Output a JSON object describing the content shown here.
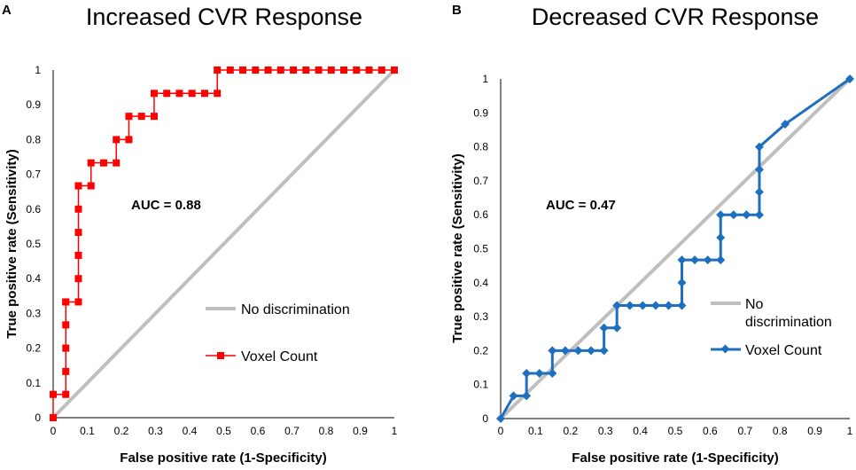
{
  "chart_data": [
    {
      "type": "line",
      "panel_label": "A",
      "title": "Increased CVR Response",
      "xlabel": "False positive rate (1-Specificity)",
      "ylabel": "True positive rate (Sensitivity)",
      "xlim": [
        0,
        1
      ],
      "ylim": [
        0,
        1
      ],
      "xticks": [
        "0",
        "0.1",
        "0.2",
        "0.3",
        "0.4",
        "0.5",
        "0.6",
        "0.7",
        "0.8",
        "0.9",
        "1"
      ],
      "yticks": [
        "0",
        "0.1",
        "0.2",
        "0.3",
        "0.4",
        "0.5",
        "0.6",
        "0.7",
        "0.8",
        "0.9",
        "1"
      ],
      "annotation": "AUC = 0.88",
      "legend": [
        "No discrimination",
        "Voxel Count"
      ],
      "series": [
        {
          "name": "No discrimination",
          "color": "#bfbfbf",
          "x": [
            0,
            1
          ],
          "y": [
            0,
            1
          ]
        },
        {
          "name": "Voxel Count",
          "color": "#ff0000",
          "marker": "square",
          "x": [
            0,
            0,
            0.037,
            0.037,
            0.037,
            0.037,
            0.037,
            0.037,
            0.074,
            0.074,
            0.074,
            0.074,
            0.074,
            0.074,
            0.074,
            0.111,
            0.111,
            0.148,
            0.185,
            0.185,
            0.222,
            0.222,
            0.259,
            0.296,
            0.296,
            0.333,
            0.37,
            0.407,
            0.444,
            0.481,
            0.481,
            0.519,
            0.556,
            0.593,
            0.63,
            0.667,
            0.704,
            0.741,
            0.778,
            0.815,
            0.852,
            0.889,
            0.926,
            0.963,
            1
          ],
          "y": [
            0,
            0.067,
            0.067,
            0.133,
            0.2,
            0.267,
            0.333,
            0.333,
            0.333,
            0.4,
            0.467,
            0.533,
            0.6,
            0.667,
            0.667,
            0.667,
            0.733,
            0.733,
            0.733,
            0.8,
            0.8,
            0.867,
            0.867,
            0.867,
            0.933,
            0.933,
            0.933,
            0.933,
            0.933,
            0.933,
            1,
            1,
            1,
            1,
            1,
            1,
            1,
            1,
            1,
            1,
            1,
            1,
            1,
            1,
            1
          ]
        }
      ]
    },
    {
      "type": "line",
      "panel_label": "B",
      "title": "Decreased CVR Response",
      "xlabel": "False positive rate (1-Specificity)",
      "ylabel": "True positive rate (Sensitivity)",
      "xlim": [
        0,
        1
      ],
      "ylim": [
        0,
        1
      ],
      "xticks": [
        "0",
        "0.1",
        "0.2",
        "0.3",
        "0.4",
        "0.5",
        "0.6",
        "0.7",
        "0.8",
        "0.9",
        "1"
      ],
      "yticks": [
        "0",
        "0.1",
        "0.2",
        "0.3",
        "0.4",
        "0.5",
        "0.6",
        "0.7",
        "0.8",
        "0.9",
        "1"
      ],
      "annotation": "AUC  = 0.47",
      "legend": [
        "No discrimination",
        "Voxel Count"
      ],
      "series": [
        {
          "name": "No discrimination",
          "color": "#bfbfbf",
          "x": [
            0,
            1
          ],
          "y": [
            0,
            1
          ]
        },
        {
          "name": "Voxel Count",
          "color": "#1f6fbf",
          "marker": "diamond",
          "x": [
            0,
            0.037,
            0.074,
            0.074,
            0.111,
            0.148,
            0.148,
            0.185,
            0.222,
            0.259,
            0.296,
            0.296,
            0.333,
            0.333,
            0.37,
            0.407,
            0.444,
            0.481,
            0.519,
            0.519,
            0.519,
            0.556,
            0.593,
            0.63,
            0.63,
            0.63,
            0.667,
            0.704,
            0.741,
            0.741,
            0.741,
            0.741,
            0.815,
            1
          ],
          "y": [
            0,
            0.067,
            0.067,
            0.133,
            0.133,
            0.133,
            0.2,
            0.2,
            0.2,
            0.2,
            0.2,
            0.267,
            0.267,
            0.333,
            0.333,
            0.333,
            0.333,
            0.333,
            0.333,
            0.4,
            0.467,
            0.467,
            0.467,
            0.467,
            0.533,
            0.6,
            0.6,
            0.6,
            0.6,
            0.667,
            0.733,
            0.8,
            0.867,
            1
          ]
        }
      ]
    }
  ]
}
